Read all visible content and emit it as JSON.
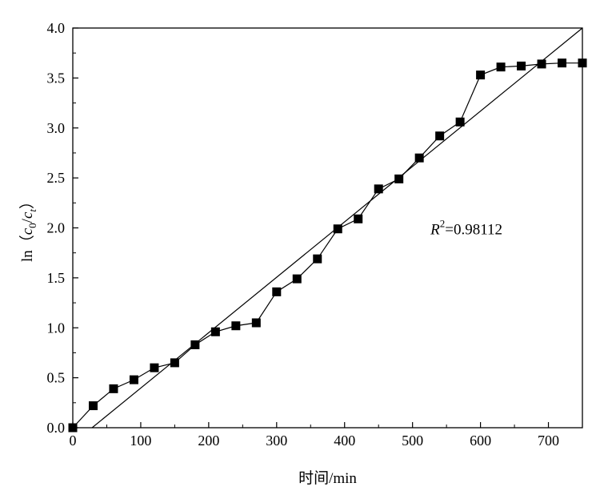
{
  "chart_data": {
    "type": "scatter",
    "xlabel": "时间/min",
    "ylabel_parts": {
      "prefix": "ln（",
      "c": "c",
      "sub0": "0",
      "slash": "/",
      "c2": "c",
      "subt": "t",
      "suffix": "）"
    },
    "xlim": [
      0,
      750
    ],
    "ylim": [
      0.0,
      4.0
    ],
    "x_ticks": [
      0,
      100,
      200,
      300,
      400,
      500,
      600,
      700
    ],
    "x_tick_labels": [
      "0",
      "100",
      "200",
      "300",
      "400",
      "500",
      "600",
      "700"
    ],
    "y_ticks": [
      0.0,
      0.5,
      1.0,
      1.5,
      2.0,
      2.5,
      3.0,
      3.5,
      4.0
    ],
    "y_tick_labels": [
      "0.0",
      "0.5",
      "1.0",
      "1.5",
      "2.0",
      "2.5",
      "3.0",
      "3.5",
      "4.0"
    ],
    "grid": false,
    "series": [
      {
        "x": [
          0,
          30,
          60,
          90,
          120,
          150,
          180,
          210,
          240,
          270,
          300,
          330,
          360,
          390,
          420,
          450,
          480,
          510,
          540,
          570,
          600,
          630,
          660,
          690,
          720,
          750
        ],
        "y": [
          0.0,
          0.22,
          0.39,
          0.48,
          0.6,
          0.65,
          0.83,
          0.96,
          1.02,
          1.05,
          1.36,
          1.49,
          1.69,
          1.99,
          2.09,
          2.39,
          2.49,
          2.7,
          2.92,
          3.06,
          3.53,
          3.61,
          3.62,
          3.64,
          3.65,
          3.65
        ],
        "marker": "square",
        "line": "solid",
        "color": "#000000"
      }
    ],
    "fit_line": {
      "x": [
        28.4,
        750
      ],
      "y": [
        0.0,
        4.0
      ],
      "color": "#000000"
    },
    "annotation": {
      "r_letter": "R",
      "superscript": "2",
      "value_text": "=0.98112",
      "position_data": [
        510,
        2.05
      ]
    }
  }
}
